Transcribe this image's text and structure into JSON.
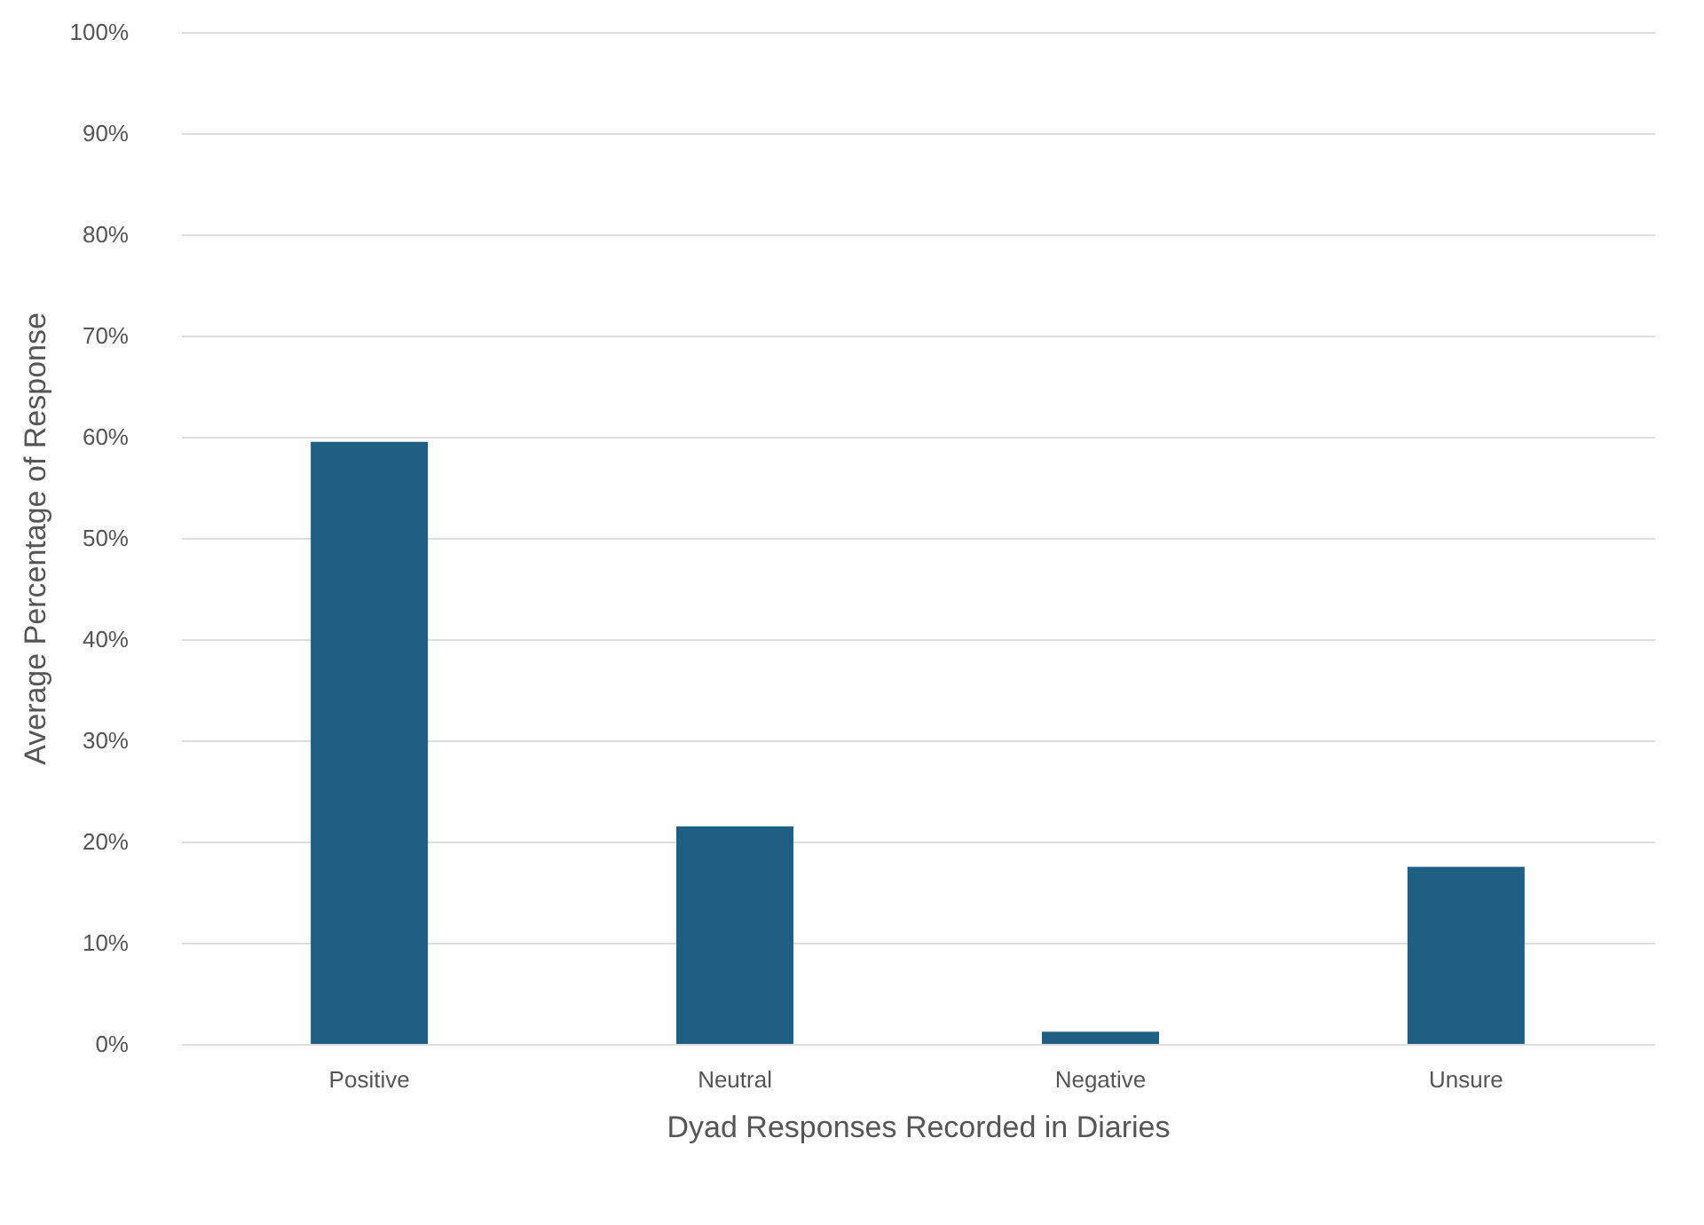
{
  "chart_data": {
    "type": "bar",
    "xlabel": "Dyad Responses Recorded in Diaries",
    "ylabel": "Average Percentage of Response",
    "categories": [
      "Positive",
      "Neutral",
      "Negative",
      "Unsure"
    ],
    "values": [
      59.5,
      21.5,
      1.2,
      17.5
    ],
    "color": "#1f5f84",
    "ylim": [
      0,
      100
    ],
    "yticks": [
      {
        "value": 0,
        "label": "0%"
      },
      {
        "value": 10,
        "label": "10%"
      },
      {
        "value": 20,
        "label": "20%"
      },
      {
        "value": 30,
        "label": "30%"
      },
      {
        "value": 40,
        "label": "40%"
      },
      {
        "value": 50,
        "label": "50%"
      },
      {
        "value": 60,
        "label": "60%"
      },
      {
        "value": 70,
        "label": "70%"
      },
      {
        "value": 80,
        "label": "80%"
      },
      {
        "value": 90,
        "label": "90%"
      },
      {
        "value": 100,
        "label": "100%"
      }
    ],
    "grid": "y"
  }
}
